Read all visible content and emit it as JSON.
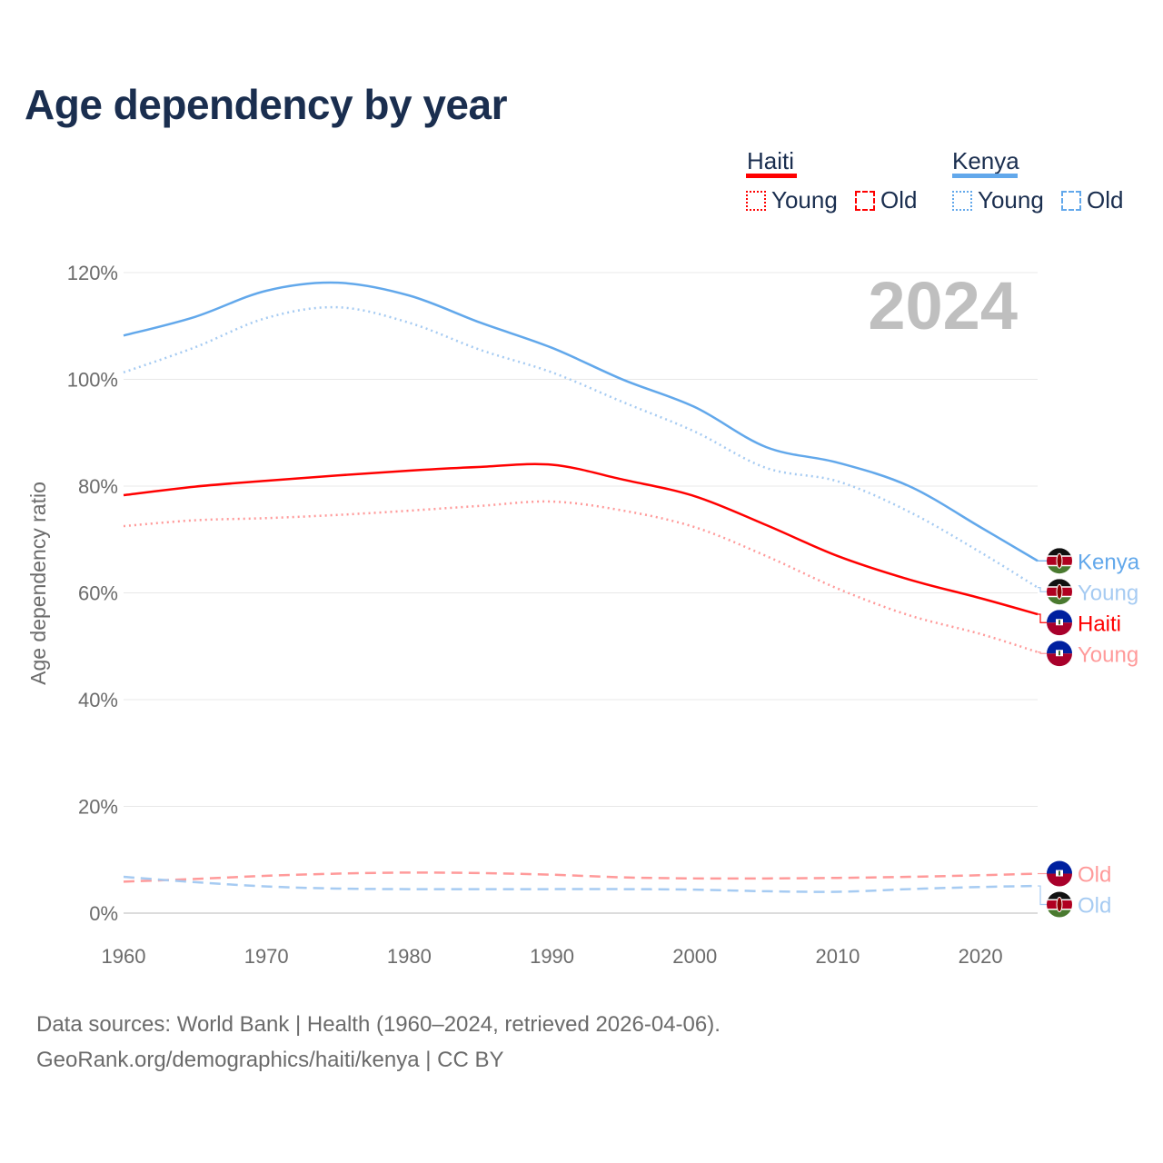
{
  "title": "Age dependency by year",
  "legend": {
    "groups": [
      {
        "country": "Haiti",
        "color": "#ff0000",
        "items": [
          {
            "label": "Young",
            "style": "dotted"
          },
          {
            "label": "Old",
            "style": "dashed"
          }
        ]
      },
      {
        "country": "Kenya",
        "color": "#62a8eb",
        "items": [
          {
            "label": "Young",
            "style": "dotted"
          },
          {
            "label": "Old",
            "style": "dashed"
          }
        ]
      }
    ]
  },
  "year_label": "2024",
  "source_lines": [
    "Data sources: World Bank | Health (1960–2024, retrieved 2026-04-06).",
    "GeoRank.org/demographics/haiti/kenya | CC BY"
  ],
  "chart_data": {
    "type": "line",
    "title": "Age dependency by year",
    "xlabel": "",
    "ylabel": "Age dependency ratio",
    "xlim": [
      1960,
      2024
    ],
    "ylim": [
      0,
      120
    ],
    "x_ticks": [
      "1960",
      "1970",
      "1980",
      "1990",
      "2000",
      "2010",
      "2020"
    ],
    "y_ticks": [
      "0%",
      "20%",
      "40%",
      "60%",
      "80%",
      "100%",
      "120%"
    ],
    "grid": true,
    "series": [
      {
        "name": "Kenya",
        "end_label": "Kenya",
        "country": "kenya",
        "color": "#62a8eb",
        "style": "solid",
        "x": [
          1960,
          1965,
          1970,
          1975,
          1980,
          1985,
          1990,
          1995,
          2000,
          2005,
          2010,
          2015,
          2020,
          2024
        ],
        "y": [
          108.2,
          111.7,
          116.6,
          118.1,
          115.7,
          110.6,
          105.9,
          99.9,
          94.8,
          87.3,
          84.4,
          80.0,
          72.3,
          66.0
        ]
      },
      {
        "name": "Kenya Young",
        "end_label": "Young",
        "country": "kenya",
        "color": "#a6cbf2",
        "style": "dotted",
        "x": [
          1960,
          1965,
          1970,
          1975,
          1980,
          1985,
          1990,
          1995,
          2000,
          2005,
          2010,
          2015,
          2020,
          2024
        ],
        "y": [
          101.3,
          106.0,
          111.5,
          113.5,
          110.6,
          105.5,
          101.3,
          95.7,
          90.2,
          83.4,
          80.9,
          75.2,
          67.6,
          61.0
        ]
      },
      {
        "name": "Haiti",
        "end_label": "Haiti",
        "country": "haiti",
        "color": "#ff0000",
        "style": "solid",
        "x": [
          1960,
          1965,
          1970,
          1975,
          1980,
          1985,
          1990,
          1995,
          2000,
          2005,
          2010,
          2015,
          2020,
          2024
        ],
        "y": [
          78.3,
          79.9,
          81.0,
          82.0,
          82.9,
          83.6,
          84.0,
          81.2,
          78.1,
          72.7,
          66.9,
          62.5,
          59.0,
          56.0
        ]
      },
      {
        "name": "Haiti Young",
        "end_label": "Young",
        "country": "haiti",
        "color": "#ff9a9a",
        "style": "dotted",
        "x": [
          1960,
          1965,
          1970,
          1975,
          1980,
          1985,
          1990,
          1995,
          2000,
          2005,
          2010,
          2015,
          2020,
          2024
        ],
        "y": [
          72.5,
          73.6,
          74.0,
          74.6,
          75.4,
          76.3,
          77.1,
          75.4,
          72.3,
          66.9,
          60.8,
          55.8,
          52.3,
          48.9
        ]
      },
      {
        "name": "Haiti Old",
        "end_label": "Old",
        "country": "haiti",
        "color": "#ff9a9a",
        "style": "dashed",
        "x": [
          1960,
          1965,
          1970,
          1975,
          1980,
          1985,
          1990,
          1995,
          2000,
          2005,
          2010,
          2015,
          2020,
          2024
        ],
        "y": [
          5.9,
          6.4,
          7.0,
          7.4,
          7.6,
          7.5,
          7.2,
          6.7,
          6.5,
          6.5,
          6.6,
          6.8,
          7.1,
          7.4
        ]
      },
      {
        "name": "Kenya Old",
        "end_label": "Old",
        "country": "kenya",
        "color": "#a6cbf2",
        "style": "dashed",
        "x": [
          1960,
          1965,
          1970,
          1975,
          1980,
          1985,
          1990,
          1995,
          2000,
          2005,
          2010,
          2015,
          2020,
          2024
        ],
        "y": [
          6.8,
          5.8,
          5.0,
          4.6,
          4.5,
          4.5,
          4.5,
          4.5,
          4.4,
          4.1,
          4.0,
          4.5,
          4.9,
          5.1
        ]
      }
    ]
  }
}
